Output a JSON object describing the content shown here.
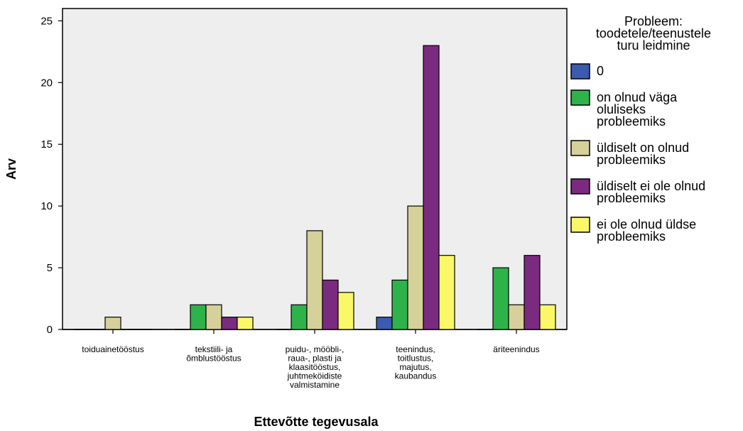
{
  "chart_data": {
    "type": "bar",
    "ylabel": "Arv",
    "xlabel": "Ettevõtte tegevusala",
    "ylim": [
      0,
      26
    ],
    "yticks": [
      0,
      5,
      10,
      15,
      20,
      25
    ],
    "grid": false,
    "legend_position": "right",
    "legend_title": [
      "Probleem:",
      "toodetele/teenustele",
      "turu leidmine"
    ],
    "categories": [
      [
        "toiduainetööstus"
      ],
      [
        "tekstiili- ja",
        "õmblustööstus"
      ],
      [
        "puidu-, mööbli-,",
        "raua-, plasti ja",
        "klaasitööstus,",
        "juhtmeköidiste",
        "valmistamine"
      ],
      [
        "teenindus,",
        "toitlustus,",
        "majutus,",
        "kaubandus"
      ],
      [
        "äriteenindus"
      ]
    ],
    "series": [
      {
        "name": [
          "0"
        ],
        "color": "#3a5bb0",
        "values": [
          0,
          0,
          0,
          1,
          0
        ]
      },
      {
        "name": [
          "on olnud väga",
          "oluliseks",
          "probleemiks"
        ],
        "color": "#2db34a",
        "values": [
          0,
          2,
          2,
          4,
          5
        ]
      },
      {
        "name": [
          "üldiselt on olnud",
          "probleemiks"
        ],
        "color": "#d6d09a",
        "values": [
          1,
          2,
          8,
          10,
          2
        ]
      },
      {
        "name": [
          "üldiselt ei ole olnud",
          "probleemiks"
        ],
        "color": "#7b2b7f",
        "values": [
          0,
          1,
          4,
          23,
          6
        ]
      },
      {
        "name": [
          "ei ole olnud üldse",
          "probleemiks"
        ],
        "color": "#fbf867",
        "values": [
          0,
          1,
          3,
          6,
          2
        ]
      }
    ]
  }
}
